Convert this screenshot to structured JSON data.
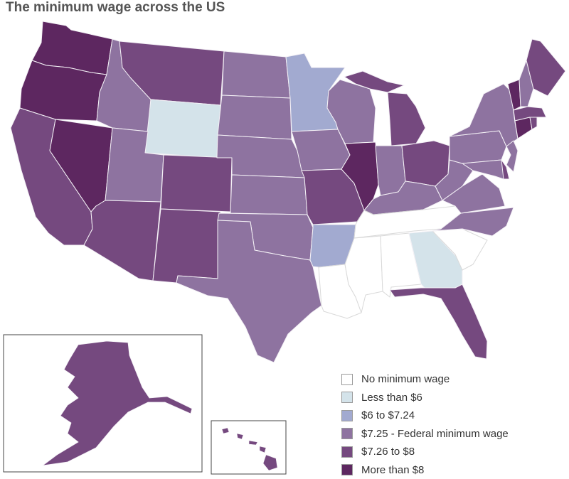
{
  "title": "The minimum wage across the US",
  "colors": {
    "no_min": "#ffffff",
    "lt6": "#d4e3ea",
    "6to724": "#a2aad0",
    "federal": "#8e73a0",
    "726to8": "#75497f",
    "gt8": "#5d2760",
    "state_border": "#f4f1f6",
    "inset_border": "#444444"
  },
  "legend": [
    {
      "label": "No minimum wage",
      "category": "no_min"
    },
    {
      "label": "Less than $6",
      "category": "lt6"
    },
    {
      "label": "$6 to $7.24",
      "category": "6to724"
    },
    {
      "label": "$7.25 - Federal minimum wage",
      "category": "federal"
    },
    {
      "label": "$7.26 to $8",
      "category": "726to8"
    },
    {
      "label": "More than $8",
      "category": "gt8"
    }
  ],
  "states": {
    "WA": "gt8",
    "OR": "gt8",
    "CA": "726to8",
    "NV": "gt8",
    "ID": "federal",
    "MT": "726to8",
    "WY": "lt6",
    "UT": "federal",
    "AZ": "726to8",
    "CO": "726to8",
    "NM": "726to8",
    "ND": "federal",
    "SD": "federal",
    "NE": "federal",
    "KS": "federal",
    "OK": "federal",
    "TX": "federal",
    "MN": "6to724",
    "IA": "federal",
    "MO": "726to8",
    "AR": "6to724",
    "LA": "no_min",
    "WI": "federal",
    "IL": "gt8",
    "MI": "726to8",
    "IN": "federal",
    "OH": "726to8",
    "KY": "federal",
    "TN": "no_min",
    "MS": "no_min",
    "AL": "no_min",
    "GA": "lt6",
    "FL": "726to8",
    "SC": "no_min",
    "NC": "federal",
    "VA": "federal",
    "WV": "federal",
    "PA": "federal",
    "NY": "federal",
    "ME": "726to8",
    "VT": "gt8",
    "NH": "federal",
    "MA": "726to8",
    "CT": "gt8",
    "RI": "726to8",
    "NJ": "federal",
    "DE": "726to8",
    "MD": "federal",
    "AK": "726to8",
    "HI": "726to8"
  }
}
